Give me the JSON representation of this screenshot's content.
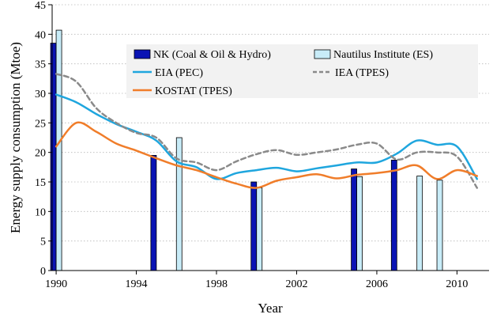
{
  "chart_data": {
    "type": "bar",
    "title": "",
    "xlabel": "Year",
    "ylabel": "Energy supply consumption (Mtoe)",
    "xlim": [
      1989.8,
      2011.6
    ],
    "ylim": [
      0,
      45
    ],
    "x_ticks": [
      1990,
      1994,
      1998,
      2002,
      2006,
      2010
    ],
    "y_ticks": [
      0,
      5,
      10,
      15,
      20,
      25,
      30,
      35,
      40,
      45
    ],
    "grid": "horizontal-dotted",
    "legend_placement": "top-right",
    "bar_series": [
      {
        "name": "NK (Coal & Oil & Hydro)",
        "color": "#0a14b4",
        "points": [
          {
            "year": 1990,
            "value": 38.5
          },
          {
            "year": 1995,
            "value": 19.5
          },
          {
            "year": 2000,
            "value": 15.0
          },
          {
            "year": 2005,
            "value": 17.2
          },
          {
            "year": 2007,
            "value": 18.7
          }
        ]
      },
      {
        "name": "Nautilus Institute (ES)",
        "color": "#c8ecf8",
        "points": [
          {
            "year": 1990,
            "value": 40.7
          },
          {
            "year": 1996,
            "value": 22.5
          },
          {
            "year": 2000,
            "value": 14.0
          },
          {
            "year": 2005,
            "value": 15.9
          },
          {
            "year": 2008,
            "value": 16.0
          },
          {
            "year": 2009,
            "value": 15.3
          }
        ]
      }
    ],
    "line_series": [
      {
        "name": "EIA (PEC)",
        "color": "#1fa6de",
        "style": "solid",
        "x": [
          1990,
          1991,
          1992,
          1993,
          1994,
          1995,
          1996,
          1997,
          1998,
          1999,
          2000,
          2001,
          2002,
          2003,
          2004,
          2005,
          2006,
          2007,
          2008,
          2009,
          2010,
          2011
        ],
        "y": [
          29.8,
          28.5,
          26.5,
          24.8,
          23.5,
          22.0,
          18.5,
          17.5,
          15.5,
          16.5,
          17.0,
          17.4,
          16.8,
          17.3,
          17.8,
          18.3,
          18.3,
          19.8,
          22.0,
          21.3,
          21.0,
          15.5
        ]
      },
      {
        "name": "IEA (TPES)",
        "color": "#8a8a8a",
        "style": "dashed",
        "x": [
          1990,
          1991,
          1992,
          1993,
          1994,
          1995,
          1996,
          1997,
          1998,
          1999,
          2000,
          2001,
          2002,
          2003,
          2004,
          2005,
          2006,
          2007,
          2008,
          2009,
          2010,
          2011
        ],
        "y": [
          33.3,
          32.0,
          27.5,
          25.0,
          23.3,
          22.5,
          19.0,
          18.3,
          17.0,
          18.5,
          19.7,
          20.4,
          19.6,
          20.0,
          20.5,
          21.3,
          21.5,
          18.8,
          20.0,
          20.0,
          19.3,
          14.0
        ]
      },
      {
        "name": "KOSTAT (TPES)",
        "color": "#f07d2a",
        "style": "solid",
        "x": [
          1990,
          1991,
          1992,
          1993,
          1994,
          1995,
          1996,
          1997,
          1998,
          1999,
          2000,
          2001,
          2002,
          2003,
          2004,
          2005,
          2006,
          2007,
          2008,
          2009,
          2010,
          2011
        ],
        "y": [
          21.0,
          25.0,
          23.5,
          21.5,
          20.3,
          19.0,
          17.8,
          17.0,
          15.8,
          14.7,
          14.0,
          15.2,
          15.8,
          16.3,
          15.6,
          16.2,
          16.5,
          17.0,
          17.8,
          15.5,
          17.0,
          16.0
        ]
      }
    ]
  }
}
